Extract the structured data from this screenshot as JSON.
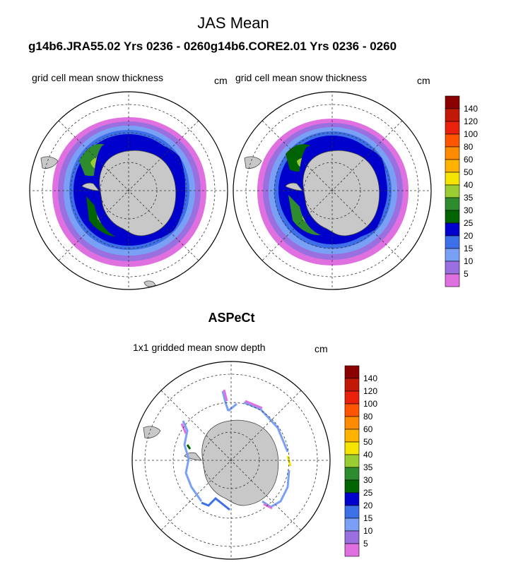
{
  "figure": {
    "title": "JAS Mean",
    "subtitle": "g14b6.JRA55.02  Yrs 0236 - 0260g14b6.CORE2.01  Yrs 0236 - 0260",
    "section_title": "ASPeCt"
  },
  "panels": [
    {
      "label": "grid cell mean snow thickness",
      "units": "cm"
    },
    {
      "label": "grid cell mean snow thickness",
      "units": "cm"
    },
    {
      "label": "1x1 gridded mean snow depth",
      "units": "cm"
    }
  ],
  "colorbar": {
    "levels": [
      "140",
      "120",
      "100",
      "80",
      "60",
      "50",
      "40",
      "35",
      "30",
      "25",
      "20",
      "15",
      "10",
      "5"
    ],
    "colors": [
      "#8b0000",
      "#c21807",
      "#e8200c",
      "#ff5500",
      "#ff8c00",
      "#ffb300",
      "#f5e300",
      "#9acd32",
      "#2e8b2e",
      "#006400",
      "#0000cd",
      "#3d6fe8",
      "#7aa0f5",
      "#9a70e0",
      "#e070e0"
    ]
  },
  "colors": {
    "land": "#c8c8c8",
    "coast": "#444444",
    "grid": "#333333"
  }
}
